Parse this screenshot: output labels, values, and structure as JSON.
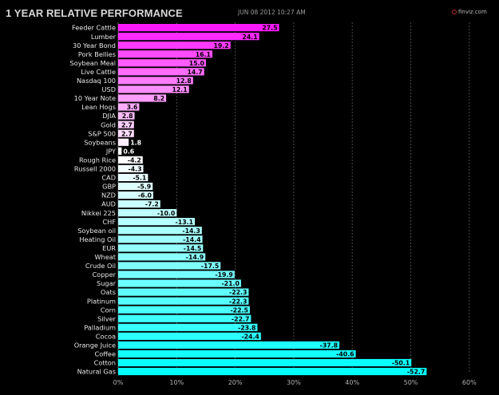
{
  "header": {
    "title": "1 YEAR RELATIVE PERFORMANCE",
    "timestamp": "JUN 08 2012 10:27 AM",
    "brand": "finviz.com",
    "brand_icon": "finviz-logo-icon"
  },
  "colors": {
    "positive_top": "#ff1aff",
    "positive_bottom": "#ffffff",
    "negative_top": "#ffffff",
    "negative_bottom": "#00ffff",
    "grid": "#4a4a4a",
    "axis_text": "#b0b0b0",
    "label_text": "#e6e6e6",
    "background": "#000000"
  },
  "chart_data": {
    "type": "bar",
    "orientation": "horizontal",
    "title": "1 YEAR RELATIVE PERFORMANCE",
    "categories": [
      "Feeder Cattle",
      "Lumber",
      "30 Year Bond",
      "Pork Bellies",
      "Soybean Meal",
      "Live Cattle",
      "Nasdaq 100",
      "USD",
      "10 Year Note",
      "Lean Hogs",
      "DJIA",
      "Gold",
      "S&P 500",
      "Soybeans",
      "JPY",
      "Rough Rice",
      "Russell 2000",
      "CAD",
      "GBP",
      "NZD",
      "AUD",
      "Nikkei 225",
      "CHF",
      "Soybean oil",
      "Heating Oil",
      "EUR",
      "Wheat",
      "Crude Oil",
      "Copper",
      "Sugar",
      "Oats",
      "Platinum",
      "Corn",
      "Silver",
      "Palladium",
      "Cocoa",
      "Orange Juice",
      "Coffee",
      "Cotton",
      "Natural Gas"
    ],
    "values": [
      27.5,
      24.1,
      19.2,
      16.1,
      15.0,
      14.7,
      12.8,
      12.1,
      8.2,
      3.6,
      2.8,
      2.7,
      2.7,
      1.8,
      0.6,
      -4.2,
      -4.3,
      -5.1,
      -5.9,
      -6.0,
      -7.2,
      -10.0,
      -13.1,
      -14.3,
      -14.4,
      -14.5,
      -14.9,
      -17.5,
      -19.9,
      -21.0,
      -22.3,
      -22.3,
      -22.5,
      -22.7,
      -23.8,
      -24.4,
      -37.8,
      -40.6,
      -50.1,
      -52.7
    ],
    "value_labels": [
      "27.5",
      "24.1",
      "19.2",
      "16.1",
      "15.0",
      "14.7",
      "12.8",
      "12.1",
      "8.2",
      "3.6",
      "2.8",
      "2.7",
      "2.7",
      "1.8",
      "0.6",
      "-4.2",
      "-4.3",
      "-5.1",
      "-5.9",
      "-6.0",
      "-7.2",
      "-10.0",
      "-13.1",
      "-14.3",
      "-14.4",
      "-14.5",
      "-14.9",
      "-17.5",
      "-19.9",
      "-21.0",
      "-22.3",
      "-22.3",
      "-22.5",
      "-22.7",
      "-23.8",
      "-24.4",
      "-37.8",
      "-40.6",
      "-50.1",
      "-52.7"
    ],
    "x_ticks": [
      "0%",
      "10%",
      "20%",
      "30%",
      "40%",
      "50%",
      "60%"
    ],
    "xlim": [
      0,
      60
    ],
    "x_scale_note": "bar length = |value|",
    "grid": true
  }
}
